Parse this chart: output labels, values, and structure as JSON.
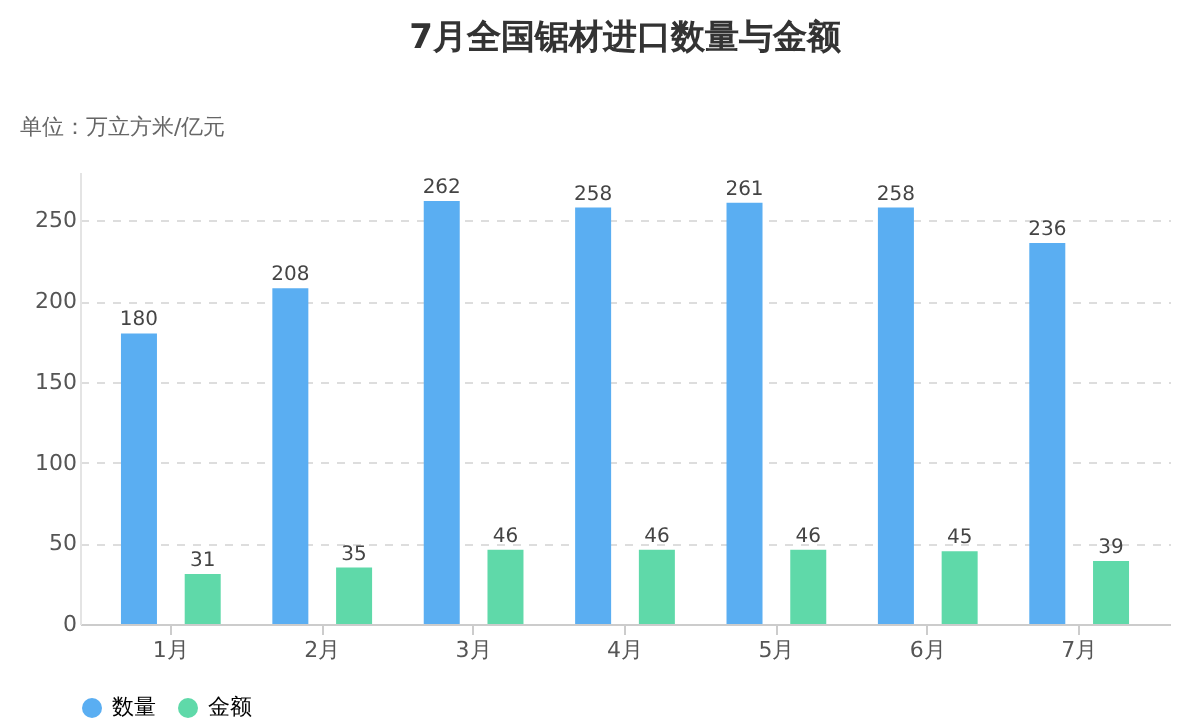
{
  "chart_data": {
    "type": "bar",
    "title": "7月全国锯材进口数量与金额",
    "subtitle": "单位：万立方米/亿元",
    "categories": [
      "1月",
      "2月",
      "3月",
      "4月",
      "5月",
      "6月",
      "7月"
    ],
    "series": [
      {
        "name": "数量",
        "color": "#5aaef2",
        "values": [
          180,
          208,
          262,
          258,
          261,
          258,
          236
        ]
      },
      {
        "name": "金额",
        "color": "#5fd9a9",
        "values": [
          31,
          35,
          46,
          46,
          46,
          45,
          39
        ]
      }
    ],
    "ylim": [
      0,
      280
    ],
    "yticks": [
      0,
      50,
      100,
      150,
      200,
      250
    ],
    "grid": "y",
    "legend": "bottom",
    "data_labels": true
  }
}
